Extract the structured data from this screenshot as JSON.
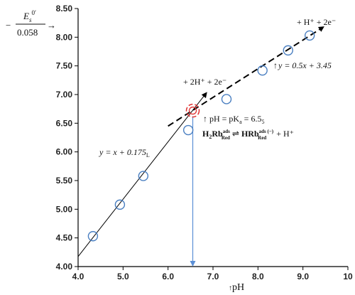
{
  "chart_data": {
    "type": "scatter",
    "xlabel": "pH",
    "ylabel": {
      "prefix": "−",
      "numerator_main": "E",
      "numerator_sub": "s",
      "numerator_sup": "0′",
      "denominator": "0.058",
      "arrow": "→"
    },
    "xlim": [
      4.0,
      10.0
    ],
    "ylim": [
      4.0,
      8.5
    ],
    "x_ticks": [
      "4.0",
      "5.0",
      "6.0",
      "7.0",
      "8.0",
      "9.0",
      "10"
    ],
    "x_tick_values": [
      4,
      5,
      6,
      7,
      8,
      9,
      10
    ],
    "y_ticks": [
      "4.00",
      "4.50",
      "5.00",
      "5.50",
      "6.00",
      "6.50",
      "7.00",
      "7.50",
      "8.00",
      "8.50"
    ],
    "y_tick_values": [
      4.0,
      4.5,
      5.0,
      5.5,
      6.0,
      6.5,
      7.0,
      7.5,
      8.0,
      8.5
    ],
    "grid": false,
    "legend": "none",
    "points": [
      {
        "x": 4.33,
        "y": 4.53
      },
      {
        "x": 4.93,
        "y": 5.08
      },
      {
        "x": 5.45,
        "y": 5.58
      },
      {
        "x": 6.45,
        "y": 6.38
      },
      {
        "x": 7.3,
        "y": 6.92
      },
      {
        "x": 8.1,
        "y": 7.42
      },
      {
        "x": 8.67,
        "y": 7.77
      },
      {
        "x": 9.15,
        "y": 8.03
      }
    ],
    "intersection_point": {
      "x": 6.55,
      "y": 6.72
    },
    "fit_lines": [
      {
        "style": "solid",
        "x": [
          4.0,
          6.85
        ],
        "y": [
          4.175,
          7.025
        ]
      },
      {
        "style": "dashed",
        "x": [
          6.0,
          9.45
        ],
        "y": [
          6.45,
          8.175
        ]
      }
    ],
    "vertical_marker_x": 6.55,
    "annotations": {
      "line1_eq": "y = x + 0.175",
      "line1_sub": "L",
      "line2_eq": "y = 0.5x + 3.45",
      "line1_arrow_label": "+ 2H⁺ + 2e⁻",
      "line2_arrow_label": "+ H⁺ + 2e⁻",
      "pka_label": "pH = pK",
      "pka_sub": "a",
      "pka_value": " = 6.5",
      "pka_value_sub": "5",
      "reaction_left": "H",
      "reaction_left_sub": "2",
      "reaction_species": "Rb",
      "reaction_sup": "ads",
      "reaction_sub": "Red",
      "reaction_arrow": "⇌",
      "reaction_right": "HRb",
      "reaction_right_sup": "ads (−)",
      "reaction_right_sub": "Red",
      "reaction_plus": "+ H⁺"
    },
    "colors": {
      "marker": "#4a7fc1",
      "intersection_marker": "#e03030",
      "vertical_line": "#5b8fd6",
      "solid_line": "#000000",
      "dashed_line": "#000000",
      "axis": "#000000"
    }
  }
}
